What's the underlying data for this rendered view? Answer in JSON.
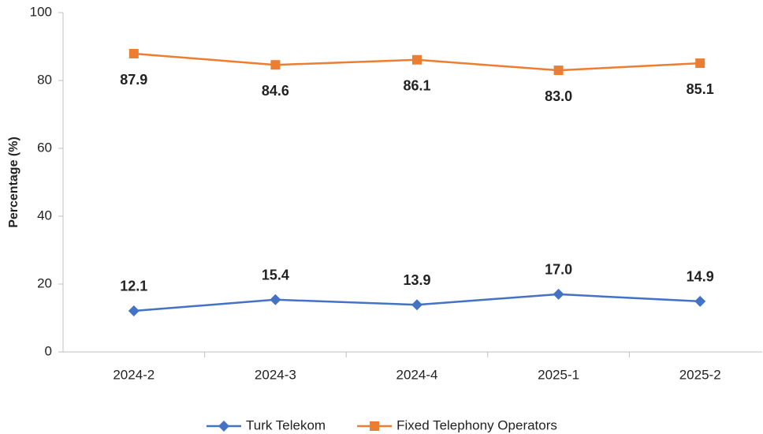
{
  "chart_data": {
    "type": "line",
    "y_label": "Percentage (%)",
    "categories": [
      "2024-2",
      "2024-3",
      "2024-4",
      "2025-1",
      "2025-2"
    ],
    "series": [
      {
        "name": "Turk Telekom",
        "color": "#4472c4",
        "marker": "diamond",
        "label_position": "above",
        "values": [
          12.1,
          15.4,
          13.9,
          17.0,
          14.9
        ],
        "value_labels": [
          "12.1",
          "15.4",
          "13.9",
          "17.0",
          "14.9"
        ]
      },
      {
        "name": "Fixed Telephony Operators",
        "color": "#ed7d31",
        "marker": "square",
        "label_position": "below",
        "values": [
          87.9,
          84.6,
          86.1,
          83.0,
          85.1
        ],
        "value_labels": [
          "87.9",
          "84.6",
          "86.1",
          "83.0",
          "85.1"
        ]
      }
    ],
    "ylim": [
      0,
      100
    ],
    "yticks": [
      0,
      20,
      40,
      60,
      80,
      100
    ],
    "grid": false,
    "legend": "bottom"
  }
}
